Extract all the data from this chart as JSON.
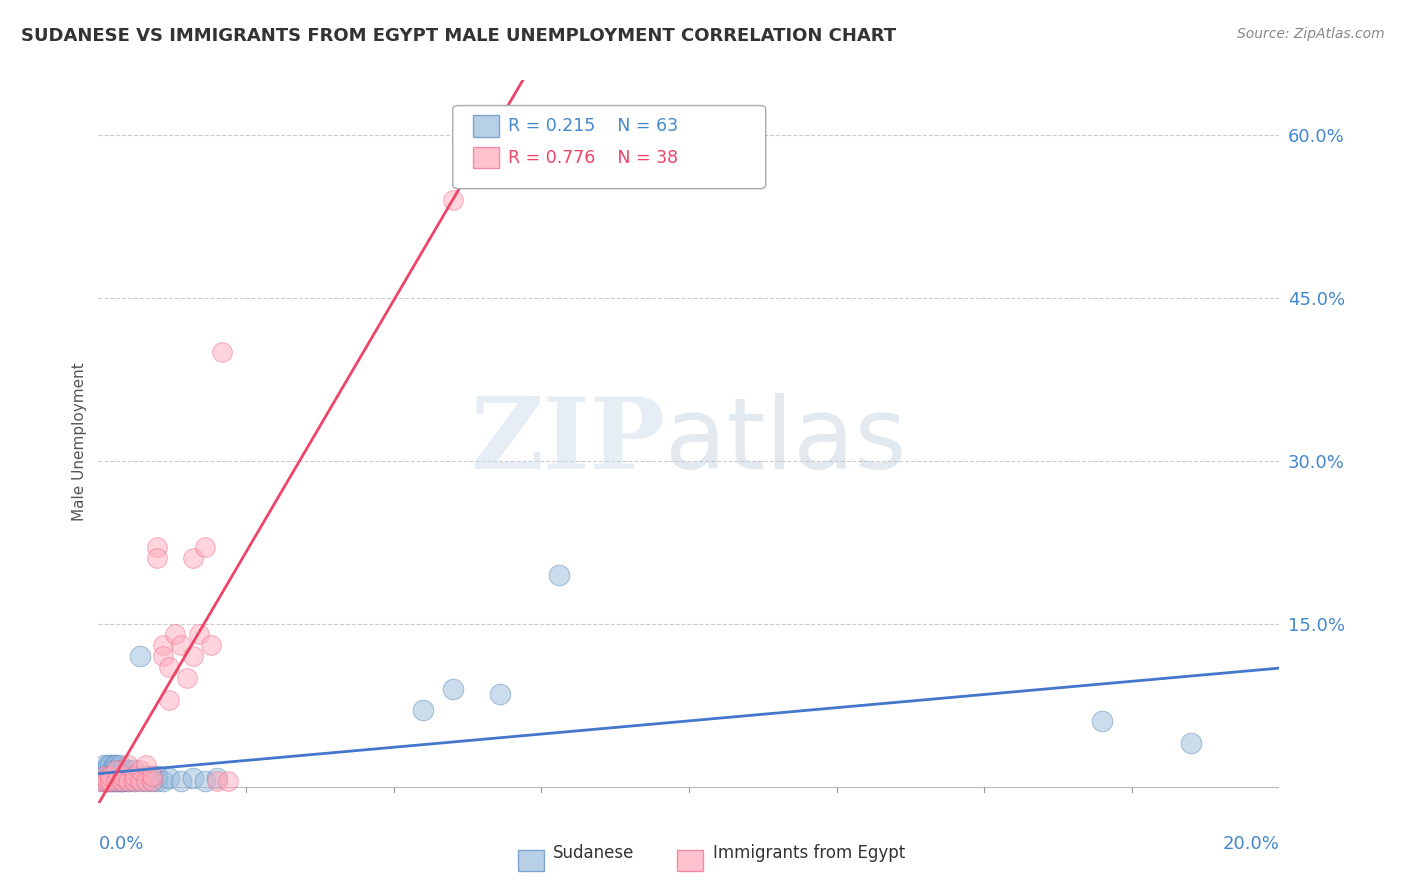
{
  "title": "SUDANESE VS IMMIGRANTS FROM EGYPT MALE UNEMPLOYMENT CORRELATION CHART",
  "source": "Source: ZipAtlas.com",
  "ylabel": "Male Unemployment",
  "y_tick_labels": [
    "15.0%",
    "30.0%",
    "45.0%",
    "60.0%"
  ],
  "y_tick_values": [
    0.15,
    0.3,
    0.45,
    0.6
  ],
  "x_min": 0.0,
  "x_max": 0.2,
  "y_min": -0.015,
  "y_max": 0.65,
  "blue_fill": "#99BBDD",
  "blue_edge": "#5588BB",
  "pink_fill": "#FFAABB",
  "pink_edge": "#EE6688",
  "blue_line_color": "#4477CC",
  "pink_line_color": "#EE4466",
  "legend_blue_r": "R = 0.215",
  "legend_blue_n": "N = 63",
  "legend_pink_r": "R = 0.776",
  "legend_pink_n": "N = 38",
  "grid_color": "#CCCCCC",
  "background_color": "#FFFFFF",
  "title_color": "#333333",
  "tick_label_color": "#4488CC",
  "sudanese_x": [
    0.0005,
    0.0008,
    0.001,
    0.001,
    0.0012,
    0.0013,
    0.0015,
    0.0015,
    0.0016,
    0.0017,
    0.0018,
    0.002,
    0.002,
    0.002,
    0.0022,
    0.0023,
    0.0025,
    0.0025,
    0.0026,
    0.0027,
    0.0028,
    0.003,
    0.003,
    0.003,
    0.003,
    0.0032,
    0.0033,
    0.0035,
    0.0035,
    0.0036,
    0.0038,
    0.004,
    0.004,
    0.004,
    0.0042,
    0.0045,
    0.005,
    0.005,
    0.005,
    0.0052,
    0.0055,
    0.006,
    0.006,
    0.007,
    0.007,
    0.008,
    0.008,
    0.009,
    0.009,
    0.01,
    0.01,
    0.011,
    0.012,
    0.014,
    0.016,
    0.018,
    0.02,
    0.055,
    0.06,
    0.068,
    0.078,
    0.17,
    0.185
  ],
  "sudanese_y": [
    0.005,
    0.008,
    0.01,
    0.02,
    0.005,
    0.015,
    0.005,
    0.01,
    0.02,
    0.005,
    0.01,
    0.005,
    0.01,
    0.02,
    0.005,
    0.015,
    0.005,
    0.01,
    0.015,
    0.02,
    0.005,
    0.005,
    0.01,
    0.015,
    0.02,
    0.005,
    0.01,
    0.005,
    0.01,
    0.02,
    0.005,
    0.005,
    0.008,
    0.015,
    0.005,
    0.01,
    0.005,
    0.01,
    0.015,
    0.005,
    0.01,
    0.005,
    0.015,
    0.005,
    0.12,
    0.005,
    0.01,
    0.005,
    0.01,
    0.005,
    0.01,
    0.005,
    0.008,
    0.005,
    0.008,
    0.005,
    0.008,
    0.07,
    0.09,
    0.085,
    0.195,
    0.06,
    0.04
  ],
  "egypt_x": [
    0.0005,
    0.001,
    0.001,
    0.0015,
    0.002,
    0.002,
    0.003,
    0.003,
    0.004,
    0.004,
    0.005,
    0.005,
    0.006,
    0.006,
    0.007,
    0.007,
    0.008,
    0.008,
    0.009,
    0.009,
    0.01,
    0.01,
    0.011,
    0.011,
    0.012,
    0.012,
    0.013,
    0.014,
    0.015,
    0.016,
    0.016,
    0.017,
    0.018,
    0.019,
    0.02,
    0.021,
    0.022,
    0.06
  ],
  "egypt_y": [
    0.005,
    0.005,
    0.01,
    0.005,
    0.005,
    0.01,
    0.005,
    0.015,
    0.005,
    0.01,
    0.005,
    0.02,
    0.005,
    0.01,
    0.005,
    0.015,
    0.005,
    0.02,
    0.005,
    0.01,
    0.22,
    0.21,
    0.13,
    0.12,
    0.08,
    0.11,
    0.14,
    0.13,
    0.1,
    0.12,
    0.21,
    0.14,
    0.22,
    0.13,
    0.005,
    0.4,
    0.005,
    0.54
  ]
}
